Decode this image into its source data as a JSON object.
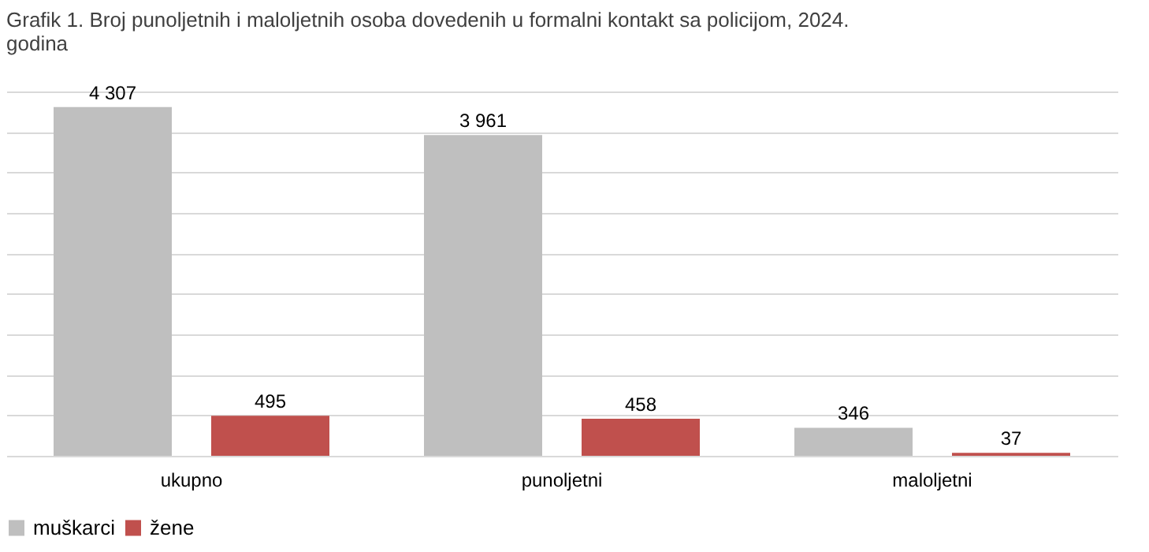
{
  "chart_data": {
    "type": "bar",
    "title": "Grafik 1. Broj punoljetnih i maloljetnih osoba dovedenih u formalni kontakt sa policijom, 2024. godina",
    "categories": [
      "ukupno",
      "punoljetni",
      "maloljetni"
    ],
    "series": [
      {
        "name": "muškarci",
        "color": "#bfbfbf",
        "values": [
          4307,
          3961,
          346
        ]
      },
      {
        "name": "žene",
        "color": "#c0504d",
        "values": [
          495,
          458,
          37
        ]
      }
    ],
    "ylim": [
      0,
      4500
    ],
    "yticks": [
      {
        "value": 0,
        "label": null
      },
      {
        "value": 500,
        "label": null
      },
      {
        "value": 1000,
        "label": null
      },
      {
        "value": 1500,
        "label": null
      },
      {
        "value": 2000,
        "label": null
      },
      {
        "value": 2500,
        "label": null
      },
      {
        "value": 3000,
        "label": null
      },
      {
        "value": 3500,
        "label": null
      },
      {
        "value": 4000,
        "label": null
      },
      {
        "value": 4500,
        "label": null
      }
    ],
    "grid": "y",
    "tick_labels": "x",
    "data_labels": true,
    "legend": "bottom"
  }
}
